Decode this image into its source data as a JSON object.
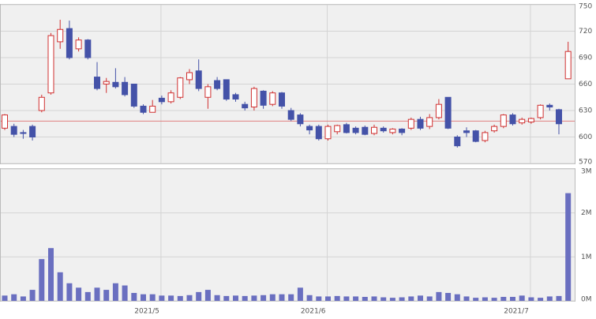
{
  "chart_data": {
    "type": "candlestick",
    "categories": [
      null,
      null,
      null,
      null,
      null,
      null,
      null,
      null,
      null,
      null,
      null,
      null,
      null,
      null,
      null,
      null,
      null,
      "2021/5",
      null,
      null,
      null,
      null,
      null,
      null,
      null,
      null,
      null,
      null,
      null,
      null,
      null,
      null,
      null,
      null,
      null,
      "2021/6",
      null,
      null,
      null,
      null,
      null,
      null,
      null,
      null,
      null,
      null,
      null,
      null,
      null,
      null,
      null,
      null,
      null,
      null,
      null,
      null,
      null,
      "2021/7",
      null,
      null,
      null,
      null
    ],
    "open": [
      610,
      612,
      605,
      612,
      630,
      650,
      708,
      723,
      700,
      710,
      668,
      660,
      662,
      662,
      660,
      635,
      628,
      644,
      640,
      645,
      665,
      675,
      645,
      664,
      665,
      648,
      637,
      634,
      652,
      637,
      650,
      630,
      625,
      612,
      612,
      598,
      606,
      614,
      610,
      611,
      604,
      610,
      605,
      609,
      610,
      620,
      612,
      622,
      645,
      600,
      607,
      607,
      596,
      607,
      612,
      625,
      616,
      617,
      622,
      636,
      631,
      666
    ],
    "high": [
      626,
      615,
      608,
      614,
      648,
      718,
      733,
      732,
      713,
      711,
      685,
      667,
      678,
      668,
      660,
      637,
      642,
      647,
      653,
      668,
      677,
      688,
      660,
      668,
      665,
      650,
      640,
      657,
      653,
      652,
      651,
      633,
      627,
      614,
      614,
      614,
      614,
      616,
      612,
      613,
      614,
      612,
      610,
      610,
      622,
      623,
      626,
      643,
      645,
      602,
      611,
      608,
      607,
      614,
      626,
      627,
      622,
      622,
      637,
      638,
      632,
      708
    ],
    "low": [
      608,
      600,
      598,
      596,
      628,
      648,
      700,
      688,
      697,
      688,
      653,
      650,
      655,
      646,
      633,
      626,
      628,
      637,
      638,
      643,
      660,
      652,
      632,
      653,
      641,
      640,
      630,
      630,
      632,
      635,
      632,
      618,
      612,
      603,
      596,
      596,
      603,
      604,
      603,
      602,
      602,
      605,
      603,
      602,
      608,
      608,
      609,
      620,
      609,
      588,
      600,
      594,
      594,
      605,
      610,
      613,
      614,
      615,
      620,
      630,
      603,
      667
    ],
    "close": [
      625,
      603,
      604,
      600,
      645,
      715,
      722,
      690,
      710,
      690,
      655,
      663,
      657,
      648,
      635,
      628,
      635,
      640,
      650,
      667,
      673,
      655,
      657,
      655,
      643,
      643,
      633,
      655,
      636,
      650,
      635,
      620,
      615,
      608,
      598,
      612,
      613,
      605,
      605,
      603,
      611,
      607,
      609,
      605,
      620,
      610,
      622,
      637,
      610,
      590,
      605,
      595,
      605,
      612,
      625,
      615,
      620,
      621,
      636,
      634,
      615,
      697
    ],
    "ylim": [
      570,
      750
    ],
    "yticks": [
      570,
      600,
      630,
      660,
      690,
      720,
      750
    ],
    "reference_line": 618,
    "up_color": "#d03030",
    "down_color": "#4452a8",
    "volume": {
      "values": [
        120000,
        150000,
        100000,
        250000,
        950000,
        1200000,
        650000,
        400000,
        300000,
        200000,
        300000,
        250000,
        400000,
        350000,
        180000,
        150000,
        150000,
        120000,
        120000,
        110000,
        130000,
        200000,
        250000,
        130000,
        110000,
        120000,
        110000,
        120000,
        130000,
        150000,
        150000,
        150000,
        300000,
        130000,
        100000,
        100000,
        110000,
        100000,
        100000,
        90000,
        100000,
        80000,
        70000,
        80000,
        100000,
        120000,
        100000,
        200000,
        180000,
        150000,
        100000,
        70000,
        80000,
        70000,
        90000,
        90000,
        120000,
        80000,
        70000,
        100000,
        110000,
        2450000
      ],
      "color": "#6a6fc0",
      "ylim": [
        0,
        3000000
      ],
      "yticks": [
        {
          "value": 0,
          "label": "0M"
        },
        {
          "value": 1000000,
          "label": "1M"
        },
        {
          "value": 2000000,
          "label": "2M"
        },
        {
          "value": 3000000,
          "label": "3M"
        }
      ]
    },
    "grid": true
  }
}
